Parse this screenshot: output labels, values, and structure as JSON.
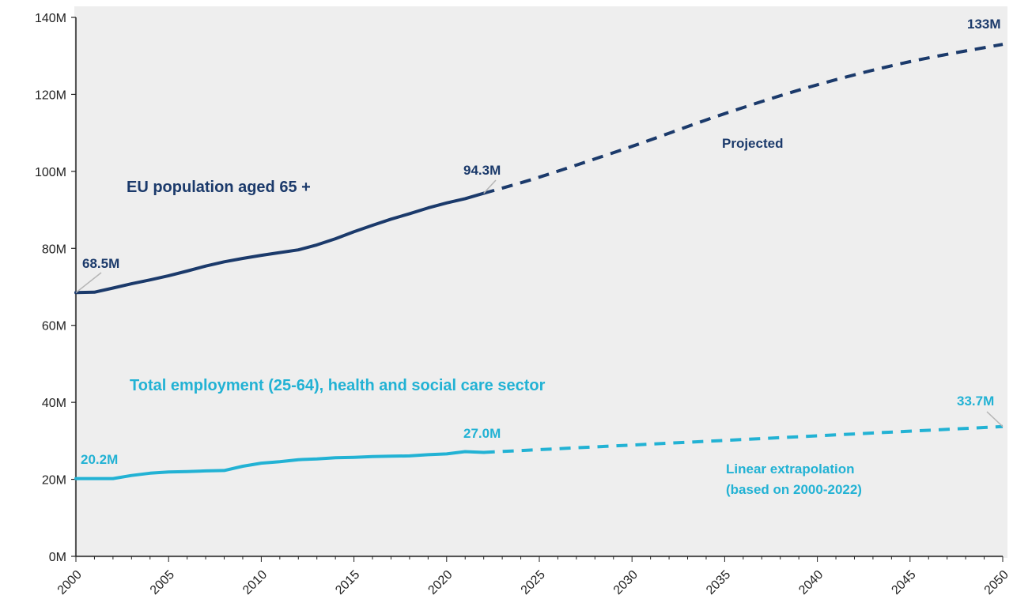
{
  "colors": {
    "population": "#1b3a6b",
    "employment": "#22b2d4",
    "panel": "#eeeeee",
    "callout": "#b5b5b5"
  },
  "chart_data": {
    "type": "line",
    "ylim": [
      0,
      140
    ],
    "xlim": [
      2000,
      2050
    ],
    "yticks": [
      0,
      20,
      40,
      60,
      80,
      100,
      120,
      140
    ],
    "ytick_labels": [
      "0M",
      "20M",
      "40M",
      "60M",
      "80M",
      "100M",
      "120M",
      "140M"
    ],
    "xticks": [
      2000,
      2005,
      2010,
      2015,
      2020,
      2025,
      2030,
      2035,
      2040,
      2045,
      2050
    ],
    "xtick_labels": [
      "2000",
      "2005",
      "2010",
      "2015",
      "2020",
      "2025",
      "2030",
      "2035",
      "2040",
      "2045",
      "2050"
    ],
    "grid": false,
    "series": [
      {
        "name": "EU population aged 65 +",
        "color": "#1b3a6b",
        "historical": {
          "x": [
            2000,
            2001,
            2002,
            2003,
            2004,
            2005,
            2006,
            2007,
            2008,
            2009,
            2010,
            2011,
            2012,
            2013,
            2014,
            2015,
            2016,
            2017,
            2018,
            2019,
            2020,
            2021,
            2022
          ],
          "y": [
            68.5,
            68.6,
            69.7,
            70.8,
            71.8,
            72.9,
            74.1,
            75.4,
            76.5,
            77.4,
            78.2,
            78.9,
            79.6,
            80.9,
            82.5,
            84.3,
            86.0,
            87.6,
            89.0,
            90.5,
            91.8,
            92.9,
            94.3
          ]
        },
        "projected": {
          "x": [
            2022,
            2025,
            2030,
            2035,
            2040,
            2045,
            2050
          ],
          "y": [
            94.3,
            98.5,
            106.5,
            115.0,
            122.5,
            128.5,
            133.0
          ]
        }
      },
      {
        "name": "Total employment (25-64), health and social care sector",
        "color": "#22b2d4",
        "historical": {
          "x": [
            2000,
            2001,
            2002,
            2003,
            2004,
            2005,
            2006,
            2007,
            2008,
            2009,
            2010,
            2011,
            2012,
            2013,
            2014,
            2015,
            2016,
            2017,
            2018,
            2019,
            2020,
            2021,
            2022
          ],
          "y": [
            20.2,
            20.2,
            20.2,
            21.0,
            21.6,
            21.9,
            22.0,
            22.2,
            22.3,
            23.4,
            24.2,
            24.6,
            25.1,
            25.3,
            25.6,
            25.7,
            25.9,
            26.0,
            26.1,
            26.4,
            26.6,
            27.2,
            27.0
          ]
        },
        "projected": {
          "x": [
            2022,
            2050
          ],
          "y": [
            27.0,
            33.7
          ]
        }
      }
    ],
    "annotations": {
      "pop_start": "68.5M",
      "pop_2022": "94.3M",
      "pop_2050": "133M",
      "pop_series_label": "EU population aged 65 +",
      "pop_projected_label": "Projected",
      "emp_start": "20.2M",
      "emp_2022": "27.0M",
      "emp_2050": "33.7M",
      "emp_series_label": "Total employment (25-64), health and social care sector",
      "emp_projected_label_1": "Linear extrapolation",
      "emp_projected_label_2": "(based on 2000-2022)"
    }
  }
}
